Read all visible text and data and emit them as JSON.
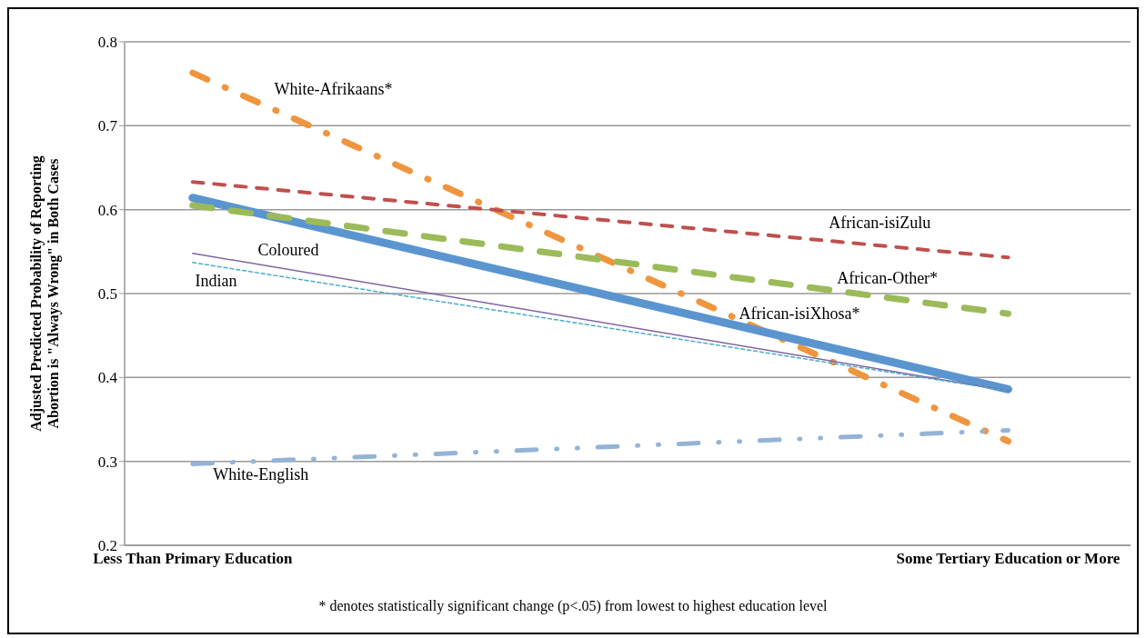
{
  "chart_data": {
    "type": "line",
    "ylabel": "Adjusted Predicted Probability of Reporting Abortion is \"Always Wrong\" in Both Cases",
    "categories": [
      "Less Than Primary Education",
      "Some Tertiary Education or More"
    ],
    "series": [
      {
        "name": "White-Afrikaans*",
        "color": "#f0953f",
        "values": [
          0.763,
          0.324
        ],
        "line_style": "dashed"
      },
      {
        "name": "African-isiZulu",
        "color": "#c0504d",
        "values": [
          0.633,
          0.543
        ],
        "line_style": "dashed"
      },
      {
        "name": "African-isiXhosa*",
        "color": "#5b95d0",
        "values": [
          0.614,
          0.386
        ],
        "line_style": "solid"
      },
      {
        "name": "African-Other*",
        "color": "#9bbb59",
        "values": [
          0.605,
          0.476
        ],
        "line_style": "dashed"
      },
      {
        "name": "Coloured",
        "color": "#8064a2",
        "values": [
          0.548,
          0.384
        ],
        "line_style": "solid"
      },
      {
        "name": "Indian",
        "color": "#4bacc6",
        "values": [
          0.537,
          0.384
        ],
        "line_style": "dotted"
      },
      {
        "name": "White-English",
        "color": "#95b3d7",
        "values": [
          0.297,
          0.337
        ],
        "line_style": "dashed"
      }
    ],
    "ylim": [
      0.2,
      0.8
    ],
    "yticks": [
      0.2,
      0.3,
      0.4,
      0.5,
      0.6,
      0.7,
      0.8
    ],
    "grid": "y",
    "legend": false,
    "marker": "none",
    "annotations": [
      "* denotes statistically significant change (p<.05) from lowest to highest education level"
    ]
  }
}
